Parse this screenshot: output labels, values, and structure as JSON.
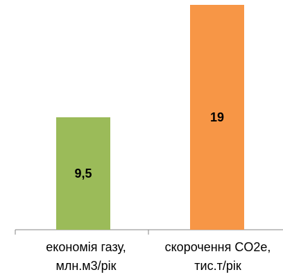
{
  "chart_data": {
    "type": "bar",
    "categories": [
      [
        "економія газу,",
        "млн.м3/рік"
      ],
      [
        "скорочення CO2e,",
        "тис.т/рік"
      ]
    ],
    "values": [
      9.5,
      19
    ],
    "value_labels": [
      "9,5",
      "19"
    ],
    "colors": [
      "#9bbb59",
      "#f79646"
    ],
    "title": "",
    "xlabel": "",
    "ylabel": "",
    "ylim": [
      0,
      19
    ],
    "grid": false,
    "legend": "none"
  }
}
